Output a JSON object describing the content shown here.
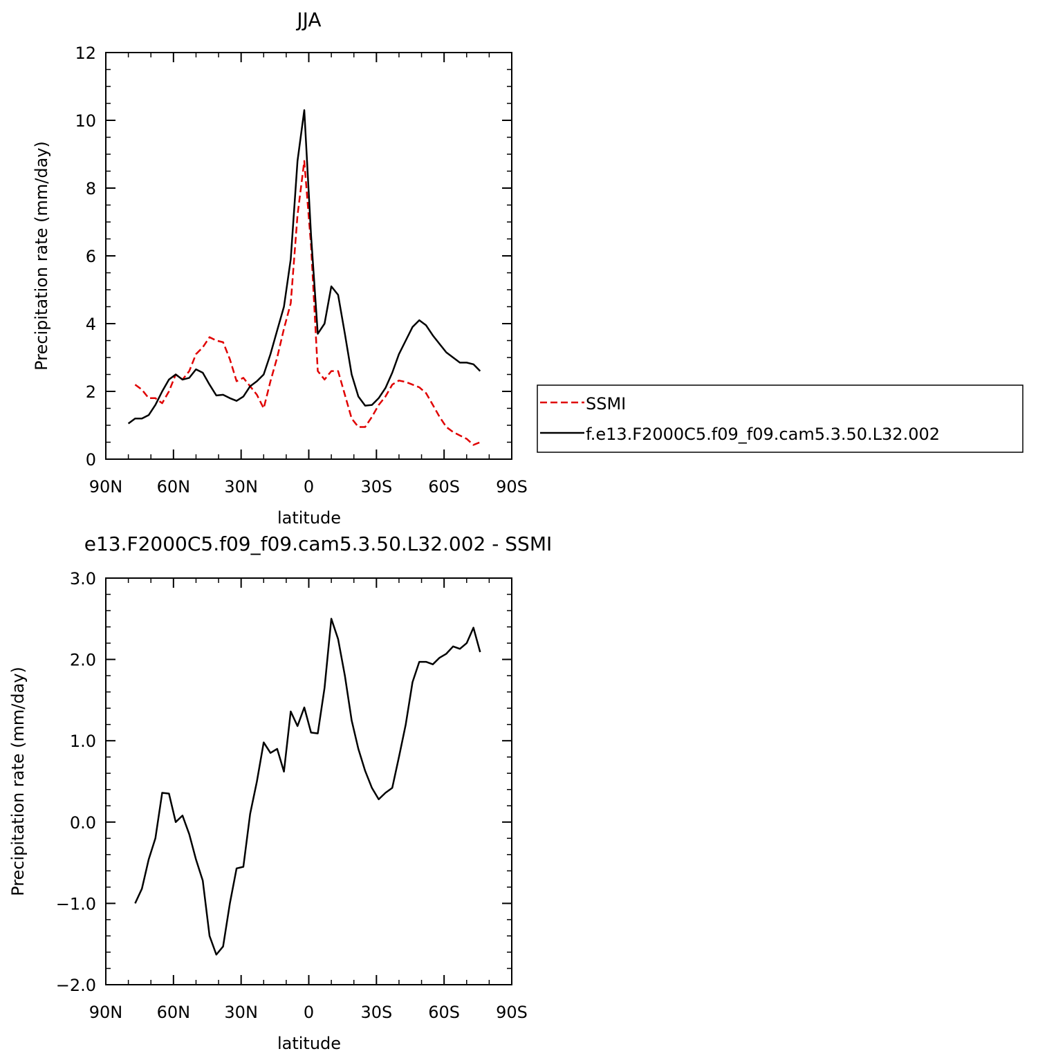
{
  "chart_data": [
    {
      "type": "line",
      "title": "JJA",
      "xlabel": "latitude",
      "ylabel": "Precipitation rate (mm/day)",
      "xlim": [
        90,
        -90
      ],
      "ylim": [
        0,
        12
      ],
      "x_ticks": [
        {
          "value": 90,
          "label": "90N"
        },
        {
          "value": 60,
          "label": "60N"
        },
        {
          "value": 30,
          "label": "30N"
        },
        {
          "value": 0,
          "label": "0"
        },
        {
          "value": -30,
          "label": "30S"
        },
        {
          "value": -60,
          "label": "60S"
        },
        {
          "value": -90,
          "label": "90S"
        }
      ],
      "y_ticks": [
        {
          "value": 0,
          "label": "0"
        },
        {
          "value": 2,
          "label": "2"
        },
        {
          "value": 4,
          "label": "4"
        },
        {
          "value": 6,
          "label": "6"
        },
        {
          "value": 8,
          "label": "8"
        },
        {
          "value": 10,
          "label": "10"
        },
        {
          "value": 12,
          "label": "12"
        }
      ],
      "legend_position": "right",
      "series": [
        {
          "name": "SSMI",
          "color": "#e00000",
          "dash": true,
          "points": [
            [
              77,
              2.2
            ],
            [
              74,
              2.05
            ],
            [
              71,
              1.8
            ],
            [
              68,
              1.8
            ],
            [
              65,
              1.65
            ],
            [
              62,
              2.0
            ],
            [
              59,
              2.5
            ],
            [
              56,
              2.35
            ],
            [
              53,
              2.6
            ],
            [
              50,
              3.1
            ],
            [
              47,
              3.3
            ],
            [
              44,
              3.6
            ],
            [
              41,
              3.5
            ],
            [
              38,
              3.45
            ],
            [
              35,
              2.95
            ],
            [
              32,
              2.3
            ],
            [
              29,
              2.4
            ],
            [
              26,
              2.15
            ],
            [
              23,
              1.9
            ],
            [
              20,
              1.5
            ],
            [
              17,
              2.3
            ],
            [
              14,
              3.0
            ],
            [
              11,
              3.85
            ],
            [
              8,
              4.6
            ],
            [
              5,
              7.2
            ],
            [
              2,
              8.8
            ],
            [
              -1,
              6.3
            ],
            [
              -4,
              2.6
            ],
            [
              -7,
              2.35
            ],
            [
              -10,
              2.6
            ],
            [
              -13,
              2.6
            ],
            [
              -16,
              1.9
            ],
            [
              -19,
              1.2
            ],
            [
              -22,
              0.95
            ],
            [
              -25,
              0.95
            ],
            [
              -28,
              1.25
            ],
            [
              -31,
              1.6
            ],
            [
              -34,
              1.85
            ],
            [
              -37,
              2.2
            ],
            [
              -40,
              2.32
            ],
            [
              -43,
              2.28
            ],
            [
              -46,
              2.2
            ],
            [
              -49,
              2.12
            ],
            [
              -52,
              1.95
            ],
            [
              -55,
              1.6
            ],
            [
              -58,
              1.25
            ],
            [
              -61,
              0.95
            ],
            [
              -64,
              0.8
            ],
            [
              -67,
              0.7
            ],
            [
              -70,
              0.6
            ],
            [
              -73,
              0.42
            ],
            [
              -76,
              0.5
            ]
          ]
        },
        {
          "name": "f.e13.F2000C5.f09_f09.cam5.3.50.L32.002",
          "color": "#000000",
          "dash": false,
          "points": [
            [
              80,
              1.05
            ],
            [
              77,
              1.2
            ],
            [
              74,
              1.2
            ],
            [
              71,
              1.3
            ],
            [
              68,
              1.6
            ],
            [
              65,
              2.0
            ],
            [
              62,
              2.35
            ],
            [
              59,
              2.5
            ],
            [
              56,
              2.35
            ],
            [
              53,
              2.4
            ],
            [
              50,
              2.65
            ],
            [
              47,
              2.55
            ],
            [
              44,
              2.2
            ],
            [
              41,
              1.88
            ],
            [
              38,
              1.9
            ],
            [
              35,
              1.8
            ],
            [
              32,
              1.72
            ],
            [
              29,
              1.85
            ],
            [
              26,
              2.15
            ],
            [
              23,
              2.3
            ],
            [
              20,
              2.5
            ],
            [
              17,
              3.1
            ],
            [
              14,
              3.8
            ],
            [
              11,
              4.5
            ],
            [
              8,
              5.9
            ],
            [
              5,
              8.8
            ],
            [
              2,
              10.3
            ],
            [
              -1,
              6.6
            ],
            [
              -4,
              3.7
            ],
            [
              -7,
              4.0
            ],
            [
              -10,
              5.1
            ],
            [
              -13,
              4.85
            ],
            [
              -16,
              3.7
            ],
            [
              -19,
              2.5
            ],
            [
              -22,
              1.85
            ],
            [
              -25,
              1.58
            ],
            [
              -28,
              1.6
            ],
            [
              -31,
              1.8
            ],
            [
              -34,
              2.1
            ],
            [
              -37,
              2.55
            ],
            [
              -40,
              3.1
            ],
            [
              -43,
              3.5
            ],
            [
              -46,
              3.9
            ],
            [
              -49,
              4.1
            ],
            [
              -52,
              3.95
            ],
            [
              -55,
              3.65
            ],
            [
              -58,
              3.4
            ],
            [
              -61,
              3.15
            ],
            [
              -64,
              3.0
            ],
            [
              -67,
              2.85
            ],
            [
              -70,
              2.85
            ],
            [
              -73,
              2.8
            ],
            [
              -76,
              2.6
            ]
          ]
        }
      ]
    },
    {
      "type": "line",
      "title": "e13.F2000C5.f09_f09.cam5.3.50.L32.002 - SSMI",
      "xlabel": "latitude",
      "ylabel": "Precipitation rate (mm/day)",
      "xlim": [
        90,
        -90
      ],
      "ylim": [
        -2.0,
        3.0
      ],
      "x_ticks": [
        {
          "value": 90,
          "label": "90N"
        },
        {
          "value": 60,
          "label": "60N"
        },
        {
          "value": 30,
          "label": "30N"
        },
        {
          "value": 0,
          "label": "0"
        },
        {
          "value": -30,
          "label": "30S"
        },
        {
          "value": -60,
          "label": "60S"
        },
        {
          "value": -90,
          "label": "90S"
        }
      ],
      "y_ticks": [
        {
          "value": -2.0,
          "label": "−2.0"
        },
        {
          "value": -1.0,
          "label": "−1.0"
        },
        {
          "value": 0.0,
          "label": "0.0"
        },
        {
          "value": 1.0,
          "label": "1.0"
        },
        {
          "value": 2.0,
          "label": "2.0"
        },
        {
          "value": 3.0,
          "label": "3.0"
        }
      ],
      "series": [
        {
          "color": "#000000",
          "dash": false,
          "points": [
            [
              77,
              -1.0
            ],
            [
              74,
              -0.82
            ],
            [
              71,
              -0.46
            ],
            [
              68,
              -0.2
            ],
            [
              65,
              0.36
            ],
            [
              62,
              0.35
            ],
            [
              59,
              0.0
            ],
            [
              56,
              0.08
            ],
            [
              53,
              -0.15
            ],
            [
              50,
              -0.46
            ],
            [
              47,
              -0.72
            ],
            [
              44,
              -1.4
            ],
            [
              41,
              -1.63
            ],
            [
              38,
              -1.53
            ],
            [
              35,
              -1.0
            ],
            [
              32,
              -0.57
            ],
            [
              29,
              -0.55
            ],
            [
              26,
              0.1
            ],
            [
              23,
              0.5
            ],
            [
              20,
              0.98
            ],
            [
              17,
              0.85
            ],
            [
              14,
              0.9
            ],
            [
              11,
              0.62
            ],
            [
              8,
              1.36
            ],
            [
              5,
              1.18
            ],
            [
              2,
              1.41
            ],
            [
              -1,
              1.1
            ],
            [
              -4,
              1.09
            ],
            [
              -7,
              1.65
            ],
            [
              -10,
              2.5
            ],
            [
              -13,
              2.25
            ],
            [
              -16,
              1.8
            ],
            [
              -19,
              1.25
            ],
            [
              -22,
              0.9
            ],
            [
              -25,
              0.63
            ],
            [
              -28,
              0.42
            ],
            [
              -31,
              0.28
            ],
            [
              -34,
              0.36
            ],
            [
              -37,
              0.42
            ],
            [
              -40,
              0.8
            ],
            [
              -43,
              1.2
            ],
            [
              -46,
              1.72
            ],
            [
              -49,
              1.97
            ],
            [
              -52,
              1.97
            ],
            [
              -55,
              1.94
            ],
            [
              -58,
              2.02
            ],
            [
              -61,
              2.07
            ],
            [
              -64,
              2.16
            ],
            [
              -67,
              2.13
            ],
            [
              -70,
              2.2
            ],
            [
              -73,
              2.39
            ],
            [
              -76,
              2.09
            ]
          ]
        }
      ]
    }
  ]
}
